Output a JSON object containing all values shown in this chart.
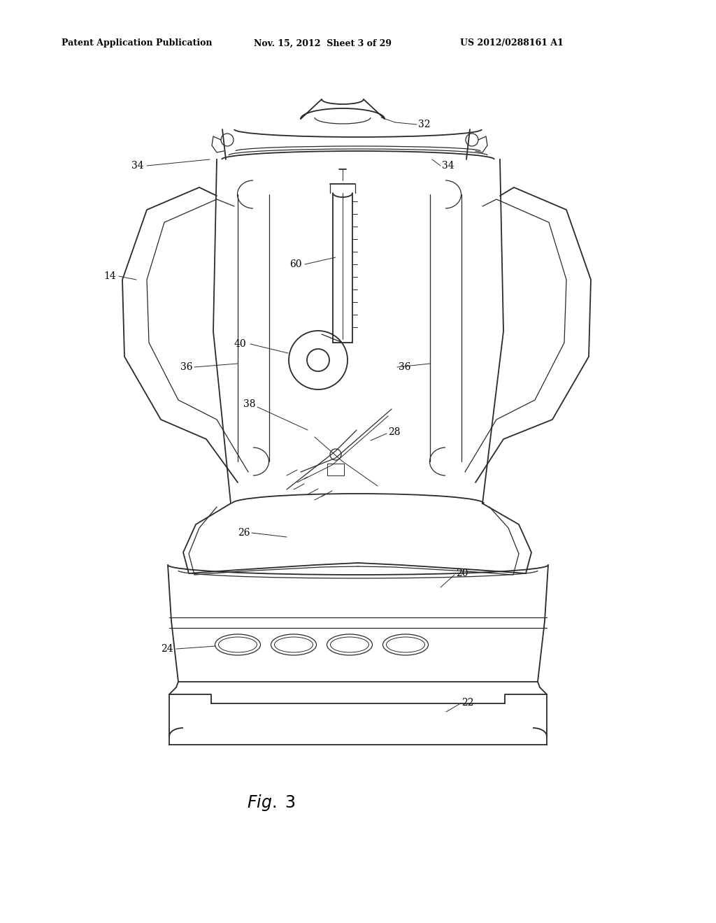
{
  "background_color": "#ffffff",
  "line_color": "#2a2a2a",
  "header_left": "Patent Application Publication",
  "header_mid": "Nov. 15, 2012  Sheet 3 of 29",
  "header_right": "US 2012/0288161 A1",
  "fig_label": "Fig. 3"
}
